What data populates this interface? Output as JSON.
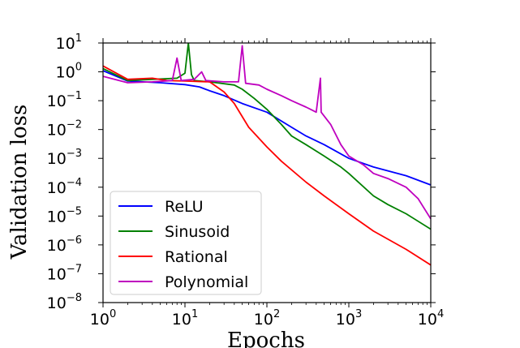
{
  "chart_data": {
    "type": "line",
    "title": "",
    "xlabel": "Epochs",
    "ylabel": "Validation loss",
    "xscale": "log",
    "yscale": "log",
    "xlim": [
      1,
      10000
    ],
    "ylim": [
      1e-08,
      10
    ],
    "x_ticks": [
      {
        "base": "10",
        "exp": "0"
      },
      {
        "base": "10",
        "exp": "1"
      },
      {
        "base": "10",
        "exp": "2"
      },
      {
        "base": "10",
        "exp": "3"
      },
      {
        "base": "10",
        "exp": "4"
      }
    ],
    "y_ticks": [
      {
        "base": "10",
        "exp": "1"
      },
      {
        "base": "10",
        "exp": "0"
      },
      {
        "base": "10",
        "exp": "−1"
      },
      {
        "base": "10",
        "exp": "−2"
      },
      {
        "base": "10",
        "exp": "−3"
      },
      {
        "base": "10",
        "exp": "−4"
      },
      {
        "base": "10",
        "exp": "−5"
      },
      {
        "base": "10",
        "exp": "−6"
      },
      {
        "base": "10",
        "exp": "−7"
      },
      {
        "base": "10",
        "exp": "−8"
      }
    ],
    "legend_position": "lower-left",
    "grid": false,
    "series": [
      {
        "name": "ReLU",
        "color": "#0000ff",
        "points": [
          [
            1,
            1.1
          ],
          [
            2,
            0.48
          ],
          [
            5,
            0.42
          ],
          [
            10,
            0.36
          ],
          [
            15,
            0.3
          ],
          [
            20,
            0.22
          ],
          [
            30,
            0.15
          ],
          [
            50,
            0.08
          ],
          [
            100,
            0.04
          ],
          [
            200,
            0.012
          ],
          [
            300,
            0.006
          ],
          [
            500,
            0.003
          ],
          [
            1000,
            0.001
          ],
          [
            2000,
            0.0005
          ],
          [
            5000,
            0.00025
          ],
          [
            10000,
            0.00012
          ]
        ]
      },
      {
        "name": "Sinusoid",
        "color": "#008000",
        "points": [
          [
            1,
            1.3
          ],
          [
            2,
            0.5
          ],
          [
            8,
            0.6
          ],
          [
            10,
            0.9
          ],
          [
            11,
            10
          ],
          [
            12,
            0.8
          ],
          [
            13,
            0.5
          ],
          [
            20,
            0.45
          ],
          [
            40,
            0.35
          ],
          [
            50,
            0.25
          ],
          [
            70,
            0.12
          ],
          [
            100,
            0.05
          ],
          [
            150,
            0.015
          ],
          [
            200,
            0.006
          ],
          [
            300,
            0.003
          ],
          [
            500,
            0.0012
          ],
          [
            800,
            0.0005
          ],
          [
            1000,
            0.0003
          ],
          [
            2000,
            5e-05
          ],
          [
            3000,
            2.5e-05
          ],
          [
            5000,
            1.2e-05
          ],
          [
            10000,
            3.5e-06
          ]
        ]
      },
      {
        "name": "Rational",
        "color": "#ff0000",
        "points": [
          [
            1,
            1.6
          ],
          [
            2,
            0.55
          ],
          [
            4,
            0.6
          ],
          [
            6,
            0.5
          ],
          [
            10,
            0.48
          ],
          [
            20,
            0.45
          ],
          [
            30,
            0.2
          ],
          [
            40,
            0.08
          ],
          [
            60,
            0.012
          ],
          [
            100,
            0.0025
          ],
          [
            150,
            0.0008
          ],
          [
            300,
            0.00015
          ],
          [
            500,
            5e-05
          ],
          [
            1000,
            1.2e-05
          ],
          [
            2000,
            3e-06
          ],
          [
            5000,
            7e-07
          ],
          [
            10000,
            2e-07
          ]
        ]
      },
      {
        "name": "Polynomial",
        "color": "#bf00bf",
        "points": [
          [
            1,
            0.7
          ],
          [
            2,
            0.42
          ],
          [
            4,
            0.45
          ],
          [
            7,
            0.5
          ],
          [
            8,
            3
          ],
          [
            9,
            0.5
          ],
          [
            13,
            0.55
          ],
          [
            16,
            1
          ],
          [
            18,
            0.5
          ],
          [
            30,
            0.45
          ],
          [
            45,
            0.45
          ],
          [
            50,
            8
          ],
          [
            55,
            0.4
          ],
          [
            80,
            0.35
          ],
          [
            100,
            0.25
          ],
          [
            150,
            0.15
          ],
          [
            200,
            0.1
          ],
          [
            300,
            0.06
          ],
          [
            400,
            0.04
          ],
          [
            450,
            0.6
          ],
          [
            460,
            0.04
          ],
          [
            600,
            0.015
          ],
          [
            800,
            0.003
          ],
          [
            1000,
            0.0012
          ],
          [
            1500,
            0.0006
          ],
          [
            2000,
            0.0003
          ],
          [
            3000,
            0.0002
          ],
          [
            5000,
            0.0001
          ],
          [
            7000,
            4e-05
          ],
          [
            10000,
            8e-06
          ]
        ]
      }
    ]
  }
}
